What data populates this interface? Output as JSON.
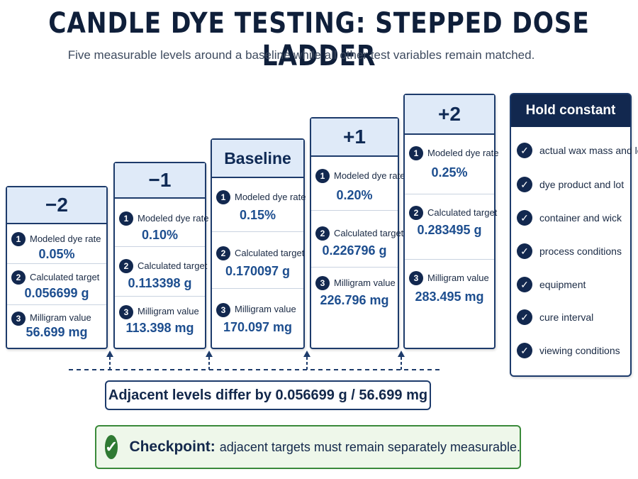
{
  "title": "CANDLE DYE TESTING: STEPPED DOSE LADDER",
  "subtitle": "Five measurable levels around a baseline while all other test variables remain matched.",
  "row_numbers": [
    "1",
    "2",
    "3"
  ],
  "levels": [
    {
      "label": "−2",
      "rows": [
        {
          "label": "Modeled dye rate",
          "value": "0.05%"
        },
        {
          "label": "Calculated target",
          "value": "0.056699 g"
        },
        {
          "label": "Milligram value",
          "value": "56.699 mg"
        }
      ]
    },
    {
      "label": "−1",
      "rows": [
        {
          "label": "Modeled dye rate",
          "value": "0.10%"
        },
        {
          "label": "Calculated target",
          "value": "0.113398 g"
        },
        {
          "label": "Milligram value",
          "value": "113.398 mg"
        }
      ]
    },
    {
      "label": "Baseline",
      "rows": [
        {
          "label": "Modeled dye rate",
          "value": "0.15%"
        },
        {
          "label": "Calculated target",
          "value": "0.170097 g"
        },
        {
          "label": "Milligram value",
          "value": "170.097 mg"
        }
      ]
    },
    {
      "label": "+1",
      "rows": [
        {
          "label": "Modeled dye rate",
          "value": "0.20%"
        },
        {
          "label": "Calculated target",
          "value": "0.226796 g"
        },
        {
          "label": "Milligram value",
          "value": "226.796 mg"
        }
      ]
    },
    {
      "label": "+2",
      "rows": [
        {
          "label": "Modeled dye rate",
          "value": "0.25%"
        },
        {
          "label": "Calculated target",
          "value": "0.283495 g"
        },
        {
          "label": "Milligram value",
          "value": "283.495 mg"
        }
      ]
    }
  ],
  "hold": {
    "title": "Hold constant",
    "items": [
      "actual wax mass and lot",
      "dye product and lot",
      "container and wick",
      "process conditions",
      "equipment",
      "cure interval",
      "viewing conditions"
    ]
  },
  "difference": "Adjacent levels differ by 0.056699 g / 56.699 mg",
  "checkpoint": {
    "lead": "Checkpoint:",
    "text": "adjacent targets must remain separately measurable."
  },
  "colors": {
    "navy": "#12284f",
    "header_fill": "#dfeaf8",
    "value_blue": "#1d4e8f",
    "checkpoint_green": "#2f7a33",
    "checkpoint_fill": "#eef7ea"
  }
}
